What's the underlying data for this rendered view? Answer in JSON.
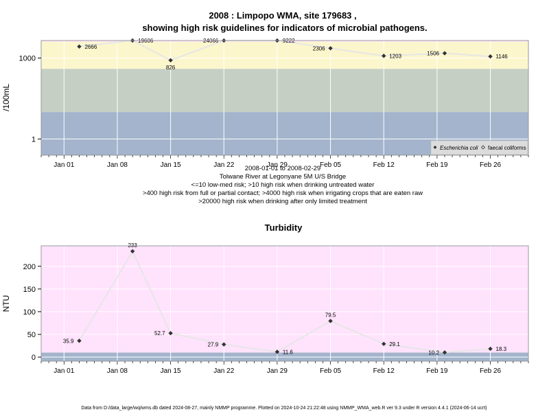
{
  "chart_data": [
    {
      "type": "line",
      "title_line1": "2008 : Limpopo WMA, site 179683 ,",
      "title_line2": "showing high risk guidelines for indicators of microbial pathogens.",
      "ylabel": "/100mL",
      "y_scale": "log",
      "y_ticks": [
        {
          "value": 1,
          "label": "1"
        },
        {
          "value": 1000,
          "label": "1000"
        }
      ],
      "x_ticks": [
        {
          "date": "2008-01-01",
          "label": "Jan 01"
        },
        {
          "date": "2008-01-08",
          "label": "Jan 08"
        },
        {
          "date": "2008-01-15",
          "label": "Jan 15"
        },
        {
          "date": "2008-01-22",
          "label": "Jan 22"
        },
        {
          "date": "2008-01-29",
          "label": "Jan 29"
        },
        {
          "date": "2008-02-05",
          "label": "Feb 05"
        },
        {
          "date": "2008-02-12",
          "label": "Feb 12"
        },
        {
          "date": "2008-02-19",
          "label": "Feb 19"
        },
        {
          "date": "2008-02-26",
          "label": "Feb 26"
        }
      ],
      "x_range": [
        "2007-12-29",
        "2008-03-02"
      ],
      "y_range_log10": [
        -0.6,
        3.65
      ],
      "bands": [
        {
          "from": 0.25,
          "to": 10,
          "color": "#a3b4cc"
        },
        {
          "from": 10,
          "to": 400,
          "color": "#c5cfc4"
        },
        {
          "from": 400,
          "to": 4000,
          "color": "#fcf6cc"
        },
        {
          "from": 4000,
          "to": 20000,
          "color": "#ffe2fc"
        },
        {
          "from": 20000,
          "to": 45000,
          "color": "#fdbdd4"
        }
      ],
      "series": [
        {
          "name": "Escherichia coli",
          "marker": "filled-diamond",
          "x": [
            "2008-01-03",
            "2008-01-10",
            "2008-01-15",
            "2008-01-22",
            "2008-01-29",
            "2008-02-05",
            "2008-02-12",
            "2008-02-20",
            "2008-02-26"
          ],
          "y": [
            2666,
            19606,
            826,
            24066,
            9222,
            2306,
            1203,
            1506,
            1146
          ],
          "labels": [
            "2666",
            "19606",
            "826",
            "24066",
            "9222",
            "2306",
            "1203",
            "1506",
            "1146"
          ]
        }
      ],
      "legend": {
        "position": "bottom-right",
        "entries": [
          {
            "label": "Escherichia coli",
            "marker": "filled-diamond",
            "italic": true
          },
          {
            "label": "faecal coliforms",
            "marker": "open-diamond",
            "italic": false
          }
        ]
      },
      "footnotes": [
        "2008-01-01 to 2008-02-29",
        "Tolwane River at Legonyane 5M U/S Bridge",
        "<=10 low-med risk; >10 high risk when drinking untreated water",
        ">400 high risk from full or partial contact; >4000 high risk when irrigating crops that are eaten raw",
        ">20000 high risk when drinking after only limited treatment"
      ]
    },
    {
      "type": "line",
      "title": "Turbidity",
      "ylabel": "NTU",
      "y_ticks": [
        {
          "value": 0,
          "label": "0"
        },
        {
          "value": 50,
          "label": "50"
        },
        {
          "value": 100,
          "label": "100"
        },
        {
          "value": 150,
          "label": "150"
        },
        {
          "value": 200,
          "label": "200"
        }
      ],
      "x_ticks": [
        {
          "date": "2008-01-01",
          "label": "Jan 01"
        },
        {
          "date": "2008-01-08",
          "label": "Jan 08"
        },
        {
          "date": "2008-01-15",
          "label": "Jan 15"
        },
        {
          "date": "2008-01-22",
          "label": "Jan 22"
        },
        {
          "date": "2008-01-29",
          "label": "Jan 29"
        },
        {
          "date": "2008-02-05",
          "label": "Feb 05"
        },
        {
          "date": "2008-02-12",
          "label": "Feb 12"
        },
        {
          "date": "2008-02-19",
          "label": "Feb 19"
        },
        {
          "date": "2008-02-26",
          "label": "Feb 26"
        }
      ],
      "x_range": [
        "2007-12-29",
        "2008-03-02"
      ],
      "y_range": [
        -9,
        245
      ],
      "bands": [
        {
          "from": -9,
          "to": 10,
          "color": "#a3b4cc"
        },
        {
          "from": 10,
          "to": 245,
          "color": "#ffe2fc"
        }
      ],
      "series": [
        {
          "name": "",
          "marker": "filled-diamond",
          "x": [
            "2008-01-03",
            "2008-01-10",
            "2008-01-15",
            "2008-01-22",
            "2008-01-29",
            "2008-02-05",
            "2008-02-12",
            "2008-02-20",
            "2008-02-26"
          ],
          "y": [
            35.9,
            233,
            52.7,
            27.9,
            11.6,
            79.5,
            29.1,
            10.2,
            18.3
          ],
          "labels": [
            "35.9",
            "233",
            "52.7",
            "27.9",
            "11.6",
            "79.5",
            "29.1",
            "10.2",
            "18.3"
          ]
        }
      ]
    }
  ],
  "footer": "Data from D:/data_large/wq/wms.db dated 2024-08-27, mainly NMMP programme. Plotted on 2024-10-24 21:22:48 using NMMP_WMA_web.R ver 9.3 under R version 4.4.1 (2024-06-14 ucrt)"
}
